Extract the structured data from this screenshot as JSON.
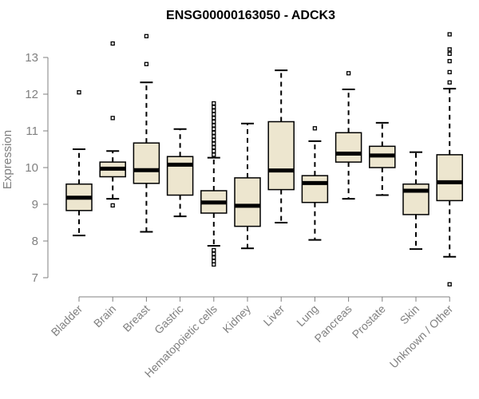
{
  "chart_data": {
    "type": "boxplot",
    "title": "ENSG00000163050 - ADCK3",
    "xlabel": "",
    "ylabel": "Expression",
    "ylim": [
      6.7,
      13.7
    ],
    "yticks": [
      7,
      8,
      9,
      10,
      11,
      12,
      13
    ],
    "grid": false,
    "colors": {
      "box_fill": "#ede6cf",
      "stroke": "#000000",
      "axis": "#808080"
    },
    "categories": [
      "Bladder",
      "Brain",
      "Breast",
      "Gastric",
      "Hematopoietic cells",
      "Kidney",
      "Liver",
      "Lung",
      "Pancreas",
      "Prostate",
      "Skin",
      "Unknown / Other"
    ],
    "boxes": [
      {
        "name": "Bladder",
        "whislo": 8.15,
        "q1": 8.83,
        "med": 9.18,
        "q3": 9.55,
        "whishi": 10.5,
        "outliers": [
          12.05
        ]
      },
      {
        "name": "Brain",
        "whislo": 9.15,
        "q1": 9.75,
        "med": 9.97,
        "q3": 10.15,
        "whishi": 10.45,
        "outliers": [
          8.97,
          11.35,
          13.38
        ]
      },
      {
        "name": "Breast",
        "whislo": 8.25,
        "q1": 9.57,
        "med": 9.93,
        "q3": 10.67,
        "whishi": 12.32,
        "outliers": [
          12.82,
          13.58
        ]
      },
      {
        "name": "Gastric",
        "whislo": 8.67,
        "q1": 9.25,
        "med": 10.08,
        "q3": 10.3,
        "whishi": 11.05,
        "outliers": []
      },
      {
        "name": "Hematopoietic cells",
        "whislo": 7.87,
        "q1": 8.76,
        "med": 9.05,
        "q3": 9.37,
        "whishi": 10.27,
        "outliers": [
          7.36,
          7.45,
          7.55,
          7.65,
          7.75,
          10.35,
          10.45,
          10.55,
          10.65,
          10.75,
          10.85,
          10.95,
          11.05,
          11.15,
          11.25,
          11.35,
          11.45,
          11.55,
          11.65,
          11.75
        ]
      },
      {
        "name": "Kidney",
        "whislo": 7.8,
        "q1": 8.4,
        "med": 8.96,
        "q3": 9.72,
        "whishi": 11.2,
        "outliers": []
      },
      {
        "name": "Liver",
        "whislo": 8.5,
        "q1": 9.4,
        "med": 9.92,
        "q3": 11.25,
        "whishi": 12.65,
        "outliers": []
      },
      {
        "name": "Lung",
        "whislo": 8.03,
        "q1": 9.05,
        "med": 9.58,
        "q3": 9.78,
        "whishi": 10.72,
        "outliers": [
          11.07
        ]
      },
      {
        "name": "Pancreas",
        "whislo": 9.15,
        "q1": 10.15,
        "med": 10.38,
        "q3": 10.95,
        "whishi": 12.13,
        "outliers": [
          12.57
        ]
      },
      {
        "name": "Prostate",
        "whislo": 9.25,
        "q1": 10.0,
        "med": 10.33,
        "q3": 10.58,
        "whishi": 11.22,
        "outliers": []
      },
      {
        "name": "Skin",
        "whislo": 7.78,
        "q1": 8.72,
        "med": 9.37,
        "q3": 9.55,
        "whishi": 10.42,
        "outliers": []
      },
      {
        "name": "Unknown / Other",
        "whislo": 7.57,
        "q1": 9.1,
        "med": 9.6,
        "q3": 10.35,
        "whishi": 12.15,
        "outliers": [
          6.82,
          12.32,
          12.6,
          12.9,
          13.1,
          13.22,
          13.63
        ]
      }
    ]
  }
}
